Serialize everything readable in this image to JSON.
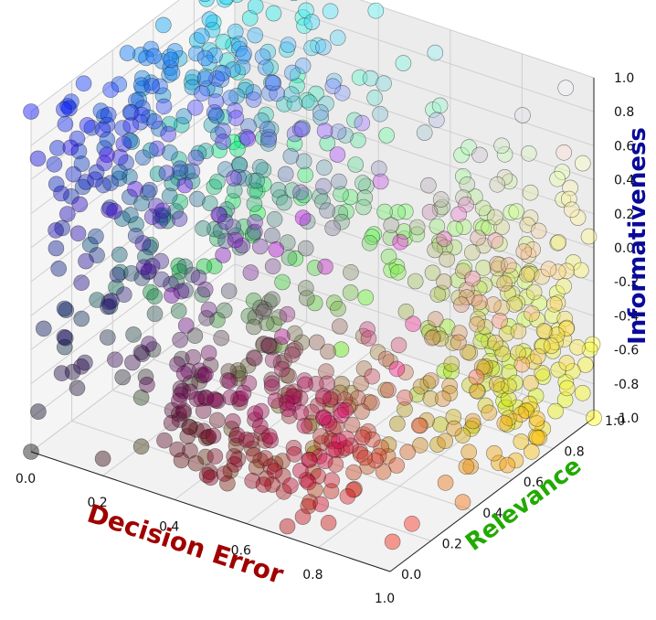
{
  "chart_data": {
    "type": "scatter",
    "subtype": "3d",
    "axes": {
      "x": {
        "label": "Decision Error",
        "range": [
          0,
          1
        ],
        "ticks": [
          "0.0",
          "0.2",
          "0.4",
          "0.6",
          "0.8",
          "1.0"
        ],
        "color": "#a00000"
      },
      "y": {
        "label": "Relevance",
        "range": [
          0,
          1
        ],
        "ticks": [
          "0.0",
          "0.2",
          "0.4",
          "0.6",
          "0.8",
          "1.0"
        ],
        "color": "#22aa00"
      },
      "z": {
        "label": "Informativeness",
        "range": [
          -1,
          1
        ],
        "ticks": [
          "-1.0",
          "-0.8",
          "-0.6",
          "-0.4",
          "-0.2",
          "0.0",
          "0.2",
          "0.4",
          "0.6",
          "0.8",
          "1.0"
        ],
        "color": "#0a0a99"
      }
    },
    "grid": true,
    "color_encoding": "red = Decision Error, green = Relevance, blue = Informativeness",
    "point_count_approx": 1000,
    "sample_points": [
      [
        0.0,
        0.0,
        -1.0
      ],
      [
        0.0,
        0.0,
        1.0
      ],
      [
        1.0,
        1.0,
        -1.0
      ],
      [
        0.1,
        0.05,
        -0.6
      ],
      [
        0.12,
        0.02,
        0.35
      ],
      [
        0.05,
        0.06,
        0.5
      ],
      [
        0.18,
        0.12,
        0.75
      ],
      [
        0.2,
        0.3,
        0.9
      ],
      [
        0.02,
        0.2,
        0.6
      ],
      [
        0.08,
        0.4,
        0.85
      ],
      [
        0.25,
        0.5,
        0.95
      ],
      [
        0.1,
        0.7,
        0.98
      ],
      [
        0.3,
        0.85,
        0.97
      ],
      [
        0.15,
        0.6,
        0.7
      ],
      [
        0.3,
        0.2,
        0.4
      ],
      [
        0.35,
        0.55,
        0.6
      ],
      [
        0.45,
        0.75,
        0.5
      ],
      [
        0.2,
        0.8,
        0.4
      ],
      [
        0.4,
        0.9,
        0.3
      ],
      [
        0.6,
        0.95,
        0.6
      ],
      [
        0.8,
        0.9,
        0.55
      ],
      [
        0.95,
        0.95,
        0.95
      ],
      [
        0.9,
        0.85,
        0.2
      ],
      [
        0.85,
        0.95,
        -0.2
      ],
      [
        0.95,
        0.9,
        -0.5
      ],
      [
        0.98,
        0.98,
        -0.85
      ],
      [
        0.92,
        1.0,
        -0.95
      ],
      [
        0.9,
        0.7,
        -0.6
      ],
      [
        0.85,
        0.6,
        -0.3
      ],
      [
        0.95,
        0.65,
        -0.75
      ],
      [
        0.9,
        0.55,
        -0.95
      ],
      [
        0.8,
        0.5,
        -0.85
      ],
      [
        0.75,
        0.35,
        -0.5
      ],
      [
        0.7,
        0.25,
        -0.6
      ],
      [
        0.6,
        0.2,
        0.05
      ],
      [
        0.55,
        0.1,
        -0.3
      ],
      [
        0.65,
        0.05,
        -0.7
      ],
      [
        0.8,
        0.05,
        -0.9
      ],
      [
        0.95,
        0.1,
        -0.95
      ],
      [
        0.5,
        0.0,
        -0.8
      ],
      [
        0.45,
        0.3,
        -0.4
      ],
      [
        0.3,
        0.05,
        -0.2
      ],
      [
        0.25,
        0.35,
        -0.1
      ],
      [
        0.15,
        0.45,
        -0.3
      ],
      [
        0.05,
        0.5,
        -0.2
      ],
      [
        0.02,
        0.1,
        0.0
      ],
      [
        0.05,
        0.3,
        0.2
      ],
      [
        0.35,
        0.65,
        -0.2
      ],
      [
        0.55,
        0.6,
        -0.1
      ],
      [
        0.65,
        0.75,
        0.1
      ],
      [
        0.75,
        0.8,
        0.3
      ],
      [
        0.7,
        0.6,
        -0.8
      ],
      [
        0.6,
        0.4,
        -0.35
      ],
      [
        0.4,
        0.15,
        0.1
      ],
      [
        0.2,
        0.0,
        -0.9
      ],
      [
        0.02,
        0.0,
        -0.75
      ],
      [
        0.1,
        0.1,
        0.9
      ],
      [
        0.15,
        0.25,
        0.15
      ],
      [
        0.25,
        0.7,
        0.2
      ],
      [
        0.5,
        0.85,
        0.75
      ]
    ]
  }
}
